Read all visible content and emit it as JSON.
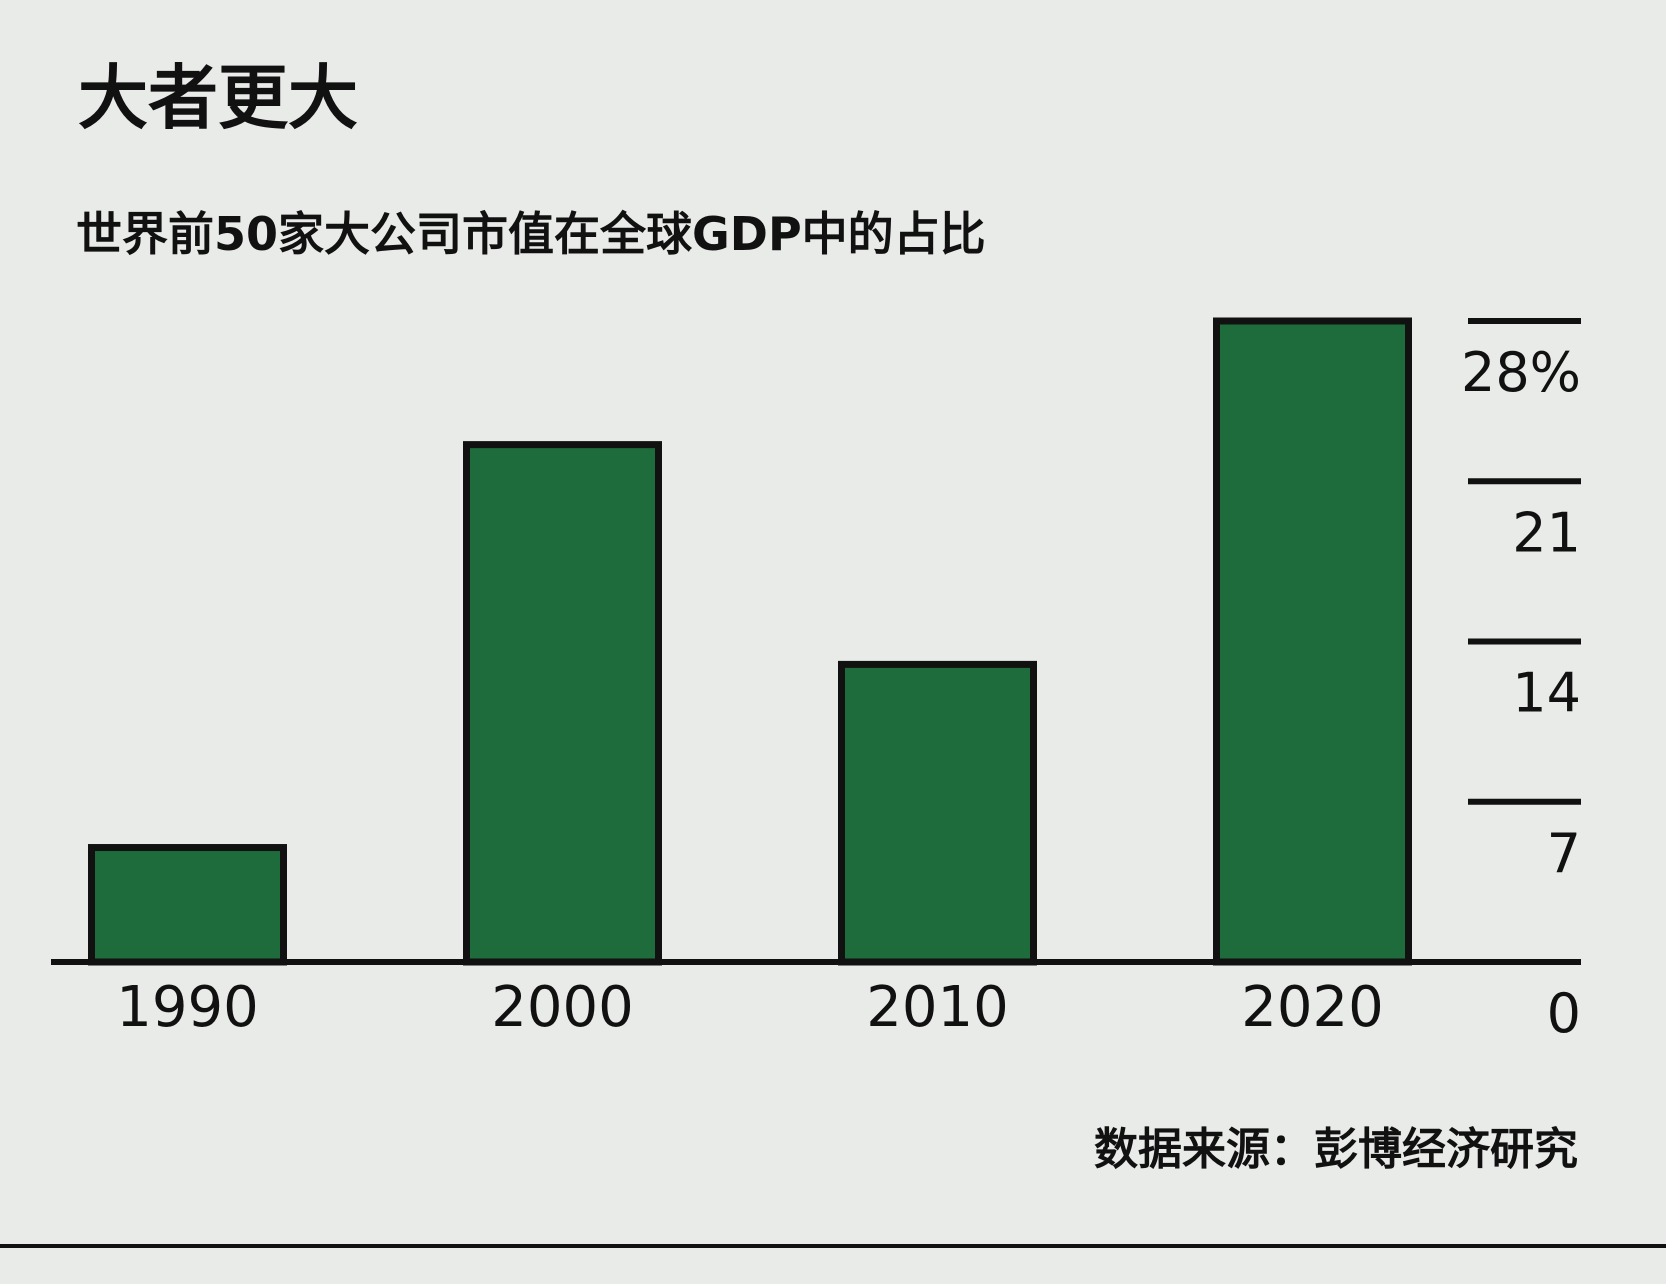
{
  "chart_data": {
    "type": "bar",
    "title": "大者更大",
    "subtitle": "世界前50家大公司市值在全球GDP中的占比",
    "categories": [
      "1990",
      "2000",
      "2010",
      "2020"
    ],
    "values": [
      5,
      22.6,
      13,
      28
    ],
    "color": "#1e6b3c",
    "ylim": [
      0,
      28
    ],
    "yticks": [
      0,
      7,
      14,
      21,
      {
        "value": 28,
        "label": "28%"
      }
    ],
    "source": "数据来源：彭博经济研究"
  }
}
